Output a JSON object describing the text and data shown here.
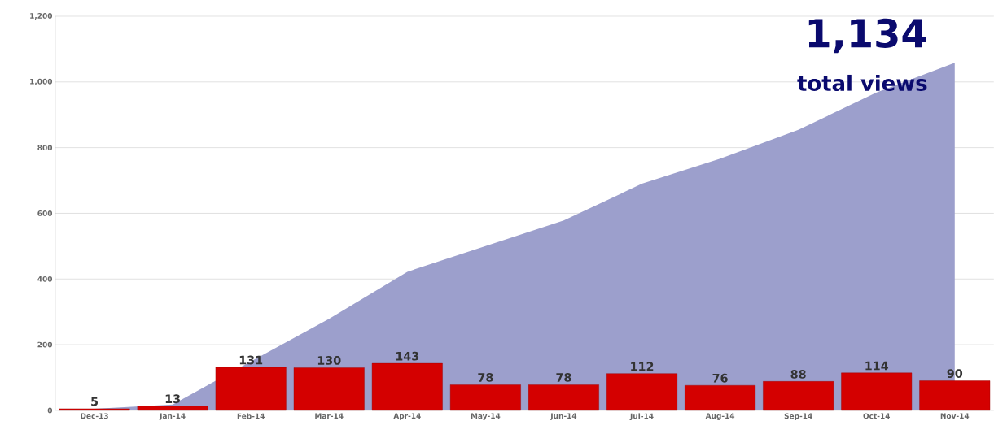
{
  "chart_data": {
    "type": "bar",
    "categories": [
      "Dec-13",
      "Jan-14",
      "Feb-14",
      "Mar-14",
      "Apr-14",
      "May-14",
      "Jun-14",
      "Jul-14",
      "Aug-14",
      "Sep-14",
      "Oct-14",
      "Nov-14"
    ],
    "series": [
      {
        "type": "area",
        "color": "#9c9fcc",
        "values": [
          5,
          18,
          149,
          279,
          422,
          500,
          578,
          690,
          766,
          854,
          968,
          1058
        ]
      },
      {
        "color": "#d40000",
        "values": [
          5,
          13,
          131,
          130,
          143,
          78,
          78,
          112,
          76,
          88,
          114,
          90
        ],
        "value_labels": [
          "5",
          "13",
          "131",
          "130",
          "143",
          "78",
          "78",
          "112",
          "76",
          "88",
          "114",
          "90"
        ]
      }
    ],
    "ylim": [
      0,
      1200
    ],
    "yticks": [
      0,
      200,
      400,
      600,
      800,
      {
        "value": 1000,
        "label": "1,000"
      },
      {
        "value": 1200,
        "label": "1,200"
      }
    ],
    "grid": "y",
    "annotations": [
      "1,134",
      "total views"
    ]
  }
}
